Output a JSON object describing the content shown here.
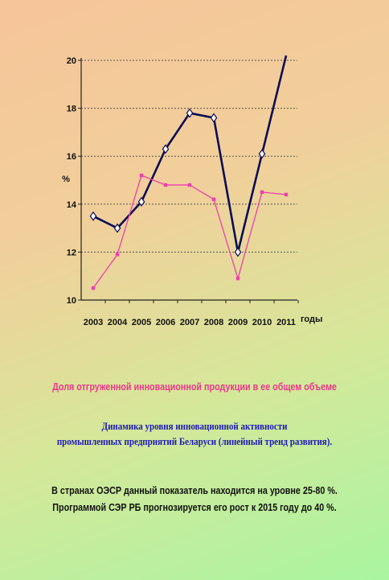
{
  "chart_data": {
    "type": "line",
    "x": [
      2003,
      2004,
      2005,
      2006,
      2007,
      2008,
      2009,
      2010,
      2011
    ],
    "xlabel": "годы",
    "ylabel": "%",
    "ylim": [
      10,
      20
    ],
    "yticks": [
      10,
      12,
      14,
      16,
      18,
      20
    ],
    "grid": "horizontal dotted",
    "series": [
      {
        "values": [
          13.5,
          13.0,
          14.1,
          16.3,
          17.8,
          17.6,
          12.0,
          16.1,
          20.2
        ],
        "color": "#0b0b55",
        "marker": "diamond"
      },
      {
        "values": [
          10.5,
          11.9,
          15.2,
          14.8,
          14.8,
          14.2,
          10.9,
          14.5,
          14.4
        ],
        "color": "#ee3fae",
        "marker": "square"
      }
    ]
  },
  "captions": {
    "pink": "Доля отгруженной инновационной продукции в ее общем объеме",
    "blue_line1": "Динамика уровня инновационной активности",
    "blue_line2": "промышленных предприятий Беларуси (линейный тренд развития)."
  },
  "note": {
    "line1": "В странах ОЭСР данный показатель находится на уровне 25-80 %.",
    "line2": "Программой СЭР РБ прогнозируется его рост к 2015 году до 40 %."
  }
}
